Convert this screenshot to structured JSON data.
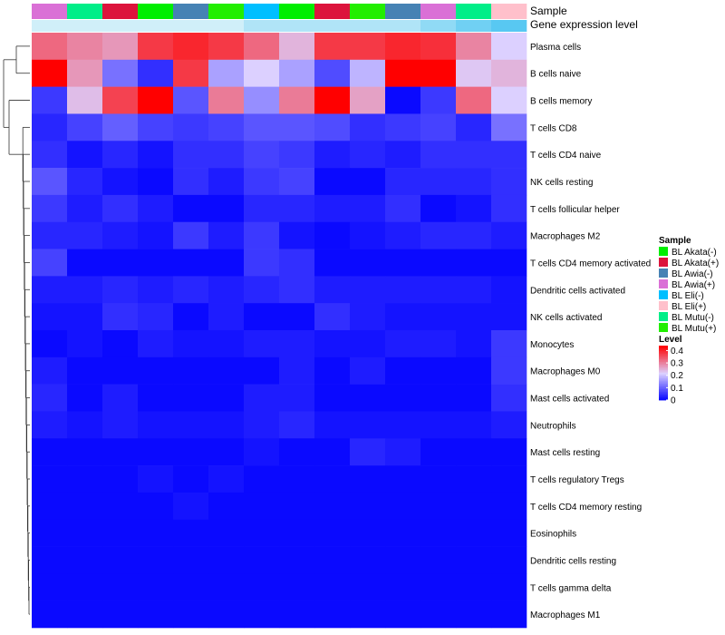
{
  "chart_data": {
    "type": "heatmap",
    "annotation_labels": [
      "Sample",
      "Gene expression level"
    ],
    "columns": [
      "BL Awia(+)",
      "BL Mutu(-)",
      "BL Akata(+)",
      "BL Akata(-)",
      "BL Awia(-)",
      "BL Mutu(+)",
      "BL Eli(-)",
      "BL Akata(-)",
      "BL Akata(+)",
      "BL Mutu(+)",
      "BL Awia(-)",
      "BL Awia(+)",
      "BL Mutu(-)",
      "BL Eli(+)"
    ],
    "gene_expression_level": [
      0.1,
      0.1,
      0.1,
      0.1,
      0.1,
      0.1,
      0.3,
      0.3,
      0.3,
      0.3,
      0.3,
      0.5,
      0.7,
      0.85
    ],
    "rows": [
      "Plasma cells",
      "B cells naive",
      "B cells memory",
      "T cells CD8",
      "T cells CD4 naive",
      "NK cells resting",
      "T cells follicular helper",
      "Macrophages M2",
      "T cells CD4 memory activated",
      "Dendritic cells activated",
      "NK cells activated",
      "Monocytes",
      "Macrophages M0",
      "Mast cells activated",
      "Neutrophils",
      "Mast cells resting",
      "T cells regulatory  Tregs",
      "T cells CD4 memory resting",
      "Eosinophils",
      "Dendritic cells resting",
      "T cells gamma delta",
      "Macrophages M1"
    ],
    "values": [
      [
        0.33,
        0.3,
        0.28,
        0.38,
        0.4,
        0.38,
        0.33,
        0.25,
        0.38,
        0.38,
        0.4,
        0.39,
        0.3,
        0.22
      ],
      [
        0.45,
        0.28,
        0.12,
        0.05,
        0.38,
        0.17,
        0.22,
        0.17,
        0.08,
        0.19,
        0.45,
        0.45,
        0.23,
        0.25
      ],
      [
        0.06,
        0.24,
        0.37,
        0.44,
        0.09,
        0.31,
        0.15,
        0.31,
        0.44,
        0.27,
        0.01,
        0.06,
        0.33,
        0.22
      ],
      [
        0.04,
        0.07,
        0.1,
        0.07,
        0.06,
        0.07,
        0.09,
        0.09,
        0.08,
        0.05,
        0.06,
        0.07,
        0.04,
        0.12
      ],
      [
        0.05,
        0.02,
        0.04,
        0.02,
        0.05,
        0.05,
        0.07,
        0.06,
        0.03,
        0.04,
        0.03,
        0.05,
        0.05,
        0.05
      ],
      [
        0.09,
        0.04,
        0.02,
        0.01,
        0.05,
        0.03,
        0.06,
        0.07,
        0.01,
        0.01,
        0.04,
        0.04,
        0.04,
        0.05
      ],
      [
        0.06,
        0.03,
        0.05,
        0.03,
        0.01,
        0.01,
        0.04,
        0.04,
        0.03,
        0.03,
        0.05,
        0.01,
        0.02,
        0.05
      ],
      [
        0.04,
        0.04,
        0.03,
        0.02,
        0.06,
        0.03,
        0.06,
        0.02,
        0.01,
        0.02,
        0.03,
        0.04,
        0.04,
        0.03
      ],
      [
        0.07,
        0.01,
        0.01,
        0.01,
        0.01,
        0.01,
        0.06,
        0.05,
        0.01,
        0.01,
        0.01,
        0.01,
        0.01,
        0.01
      ],
      [
        0.03,
        0.03,
        0.04,
        0.03,
        0.04,
        0.03,
        0.04,
        0.05,
        0.03,
        0.03,
        0.03,
        0.03,
        0.03,
        0.02
      ],
      [
        0.02,
        0.02,
        0.05,
        0.04,
        0.01,
        0.03,
        0.01,
        0.01,
        0.05,
        0.03,
        0.02,
        0.02,
        0.02,
        0.02
      ],
      [
        0.01,
        0.02,
        0.01,
        0.03,
        0.02,
        0.02,
        0.03,
        0.03,
        0.02,
        0.02,
        0.03,
        0.03,
        0.02,
        0.06
      ],
      [
        0.03,
        0.01,
        0.01,
        0.01,
        0.01,
        0.01,
        0.01,
        0.03,
        0.01,
        0.03,
        0.01,
        0.01,
        0.01,
        0.06
      ],
      [
        0.04,
        0.01,
        0.03,
        0.01,
        0.01,
        0.01,
        0.03,
        0.03,
        0.01,
        0.01,
        0.01,
        0.01,
        0.01,
        0.05
      ],
      [
        0.03,
        0.02,
        0.03,
        0.02,
        0.02,
        0.02,
        0.03,
        0.04,
        0.02,
        0.02,
        0.02,
        0.02,
        0.02,
        0.03
      ],
      [
        0.01,
        0.01,
        0.01,
        0.01,
        0.01,
        0.01,
        0.02,
        0.01,
        0.01,
        0.04,
        0.03,
        0.01,
        0.01,
        0.01
      ],
      [
        0.01,
        0.01,
        0.01,
        0.02,
        0.01,
        0.02,
        0.01,
        0.01,
        0.01,
        0.01,
        0.01,
        0.01,
        0.01,
        0.01
      ],
      [
        0.01,
        0.01,
        0.01,
        0.01,
        0.02,
        0.01,
        0.01,
        0.01,
        0.01,
        0.01,
        0.01,
        0.01,
        0.01,
        0.01
      ],
      [
        0.01,
        0.01,
        0.01,
        0.01,
        0.01,
        0.01,
        0.01,
        0.01,
        0.01,
        0.01,
        0.01,
        0.01,
        0.01,
        0.01
      ],
      [
        0.01,
        0.01,
        0.01,
        0.01,
        0.01,
        0.01,
        0.01,
        0.01,
        0.01,
        0.01,
        0.01,
        0.01,
        0.01,
        0.01
      ],
      [
        0.01,
        0.01,
        0.01,
        0.01,
        0.01,
        0.01,
        0.01,
        0.01,
        0.01,
        0.01,
        0.01,
        0.01,
        0.01,
        0.01
      ],
      [
        0.01,
        0.01,
        0.01,
        0.01,
        0.01,
        0.01,
        0.01,
        0.01,
        0.01,
        0.01,
        0.01,
        0.01,
        0.01,
        0.01
      ]
    ],
    "sample_legend": {
      "title": "Sample",
      "entries": [
        {
          "label": "BL Akata(-)",
          "color": "#00ee00"
        },
        {
          "label": "BL Akata(+)",
          "color": "#dc143c"
        },
        {
          "label": "BL Awia(-)",
          "color": "#4682b4"
        },
        {
          "label": "BL Awia(+)",
          "color": "#da70d6"
        },
        {
          "label": "BL Eli(-)",
          "color": "#00bfff"
        },
        {
          "label": "BL Eli(+)",
          "color": "#ffc0cb"
        },
        {
          "label": "BL Mutu(-)",
          "color": "#00ee88"
        },
        {
          "label": "BL Mutu(+)",
          "color": "#22ee00"
        }
      ]
    },
    "level_legend": {
      "title": "Level",
      "ticks": [
        "0.4",
        "0.3",
        "0.2",
        "0.1",
        "0"
      ],
      "tick_values": [
        0.4,
        0.3,
        0.2,
        0.1,
        0
      ],
      "range": [
        0,
        0.44
      ],
      "colors": [
        "#0000ff",
        "#dcd0ff",
        "#ff0000"
      ]
    },
    "gene_level_colors": [
      "#e0f4fa",
      "#40c0f0"
    ],
    "dendrogram": "row clustering tree, left side"
  }
}
